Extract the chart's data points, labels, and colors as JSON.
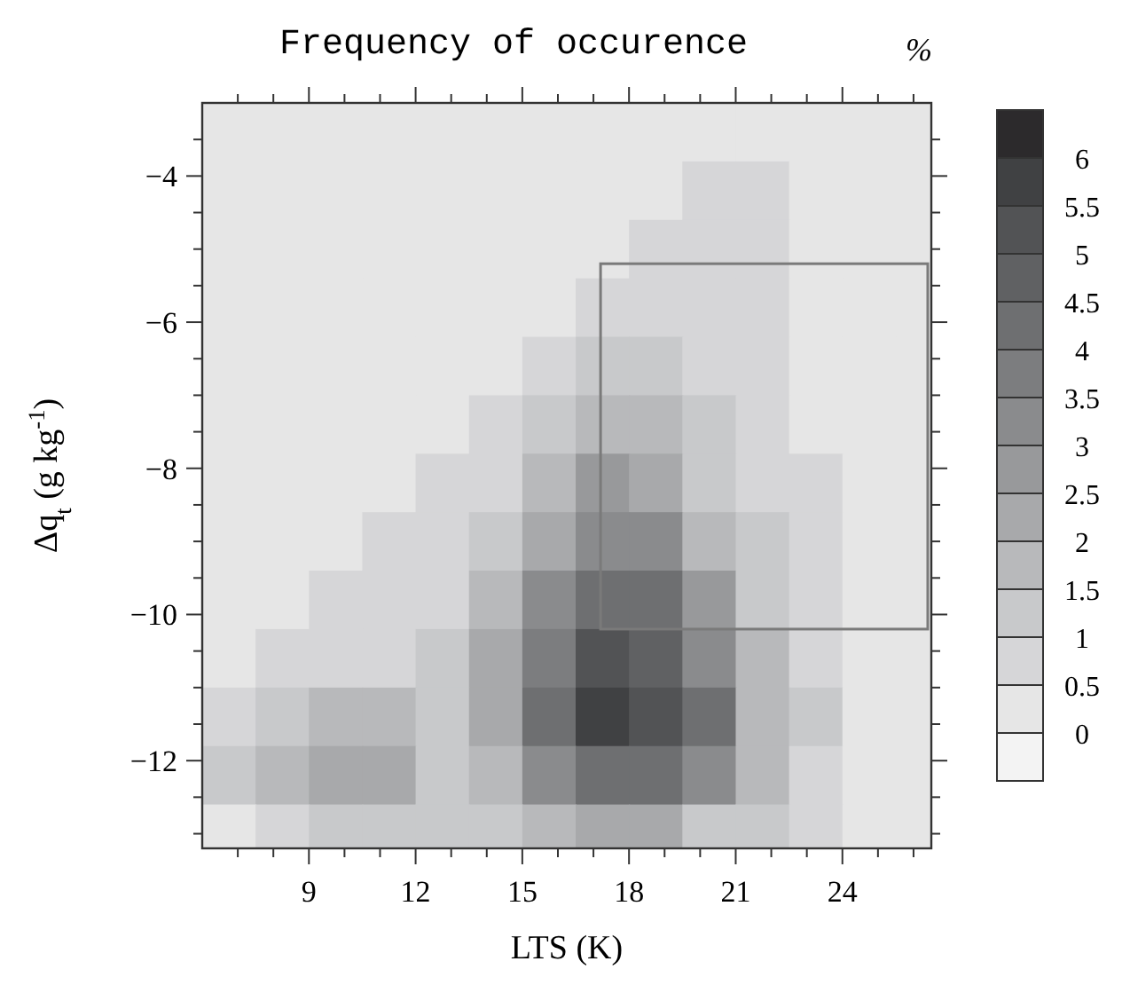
{
  "chart_data": {
    "type": "heatmap",
    "title": "Frequency of occurence",
    "clabel": "%",
    "xlabel": "LTS (K)",
    "ylabel": "Δq$_{t}$ (g kg$^{-1}$)",
    "x": [
      6.75,
      8.25,
      9.75,
      11.25,
      12.75,
      14.25,
      15.75,
      17.25,
      18.75,
      20.25,
      21.75,
      23.25,
      24.75,
      26.25
    ],
    "y": [
      -3.4,
      -4.2,
      -5.0,
      -5.8,
      -6.6,
      -7.4,
      -8.2,
      -9.0,
      -9.8,
      -10.6,
      -11.4,
      -12.2,
      -13.0
    ],
    "cells": [
      [
        0.2,
        0.2,
        0.2,
        0.2,
        0.2,
        0.2,
        0.2,
        0.2,
        0.2,
        0.2,
        0.2,
        0.2,
        0.2,
        0.2
      ],
      [
        0.2,
        0.2,
        0.2,
        0.2,
        0.2,
        0.2,
        0.2,
        0.2,
        0.2,
        0.6,
        0.7,
        0.2,
        0.2,
        0.2
      ],
      [
        0.2,
        0.2,
        0.2,
        0.2,
        0.2,
        0.2,
        0.2,
        0.2,
        0.6,
        0.8,
        0.8,
        0.4,
        0.2,
        0.2
      ],
      [
        0.2,
        0.2,
        0.2,
        0.2,
        0.2,
        0.2,
        0.2,
        0.6,
        0.9,
        0.9,
        0.6,
        0.2,
        0.2,
        0.2
      ],
      [
        0.2,
        0.2,
        0.2,
        0.2,
        0.2,
        0.2,
        0.6,
        1.2,
        1.2,
        0.8,
        0.5,
        0.2,
        0.2,
        0.2
      ],
      [
        0.2,
        0.2,
        0.2,
        0.2,
        0.2,
        0.6,
        1.2,
        1.7,
        1.6,
        1.1,
        0.7,
        0.3,
        0.2,
        0.2
      ],
      [
        0.2,
        0.2,
        0.2,
        0.2,
        0.5,
        0.9,
        1.7,
        2.6,
        2.4,
        1.3,
        0.8,
        0.5,
        0.2,
        0.2
      ],
      [
        0.2,
        0.2,
        0.2,
        0.6,
        0.8,
        1.3,
        2.3,
        3.2,
        3.0,
        1.8,
        1.1,
        0.6,
        0.3,
        0.2
      ],
      [
        0.2,
        0.4,
        0.6,
        0.8,
        0.9,
        1.6,
        3.2,
        4.2,
        4.0,
        2.5,
        1.3,
        0.8,
        0.3,
        0.2
      ],
      [
        0.4,
        0.8,
        0.9,
        0.9,
        1.2,
        2.0,
        3.8,
        5.2,
        4.8,
        3.2,
        1.6,
        0.9,
        0.3,
        0.2
      ],
      [
        0.8,
        1.3,
        1.6,
        1.5,
        1.2,
        2.2,
        4.2,
        5.6,
        5.0,
        4.0,
        1.8,
        1.0,
        0.3,
        0.2
      ],
      [
        1.1,
        1.6,
        2.2,
        2.3,
        1.4,
        1.6,
        3.2,
        4.3,
        4.1,
        3.4,
        1.8,
        0.9,
        0.3,
        0.2
      ],
      [
        0.4,
        0.8,
        1.1,
        1.1,
        1.1,
        1.2,
        1.7,
        2.2,
        2.0,
        1.4,
        1.1,
        0.6,
        0.3,
        0.2
      ]
    ],
    "xlim": [
      6,
      26.5
    ],
    "ylim": [
      -13.2,
      -3
    ],
    "xticks": [
      {
        "value": 7,
        "label": null
      },
      {
        "value": 8,
        "label": null
      },
      9,
      {
        "value": 10,
        "label": null
      },
      {
        "value": 11,
        "label": null
      },
      12,
      {
        "value": 13,
        "label": null
      },
      {
        "value": 14,
        "label": null
      },
      15,
      {
        "value": 16,
        "label": null
      },
      {
        "value": 17,
        "label": null
      },
      18,
      {
        "value": 19,
        "label": null
      },
      {
        "value": 20,
        "label": null
      },
      21,
      {
        "value": 22,
        "label": null
      },
      {
        "value": 23,
        "label": null
      },
      24,
      {
        "value": 25,
        "label": null
      },
      {
        "value": 26,
        "label": null
      }
    ],
    "yticks": [
      {
        "value": -13,
        "label": null
      },
      {
        "value": -12.5,
        "label": null
      },
      -12,
      {
        "value": -11.5,
        "label": null
      },
      {
        "value": -11,
        "label": null
      },
      {
        "value": -10.5,
        "label": null
      },
      -10,
      {
        "value": -9.5,
        "label": null
      },
      {
        "value": -9,
        "label": null
      },
      {
        "value": -8.5,
        "label": null
      },
      -8,
      {
        "value": -7.5,
        "label": null
      },
      {
        "value": -7,
        "label": null
      },
      {
        "value": -6.5,
        "label": null
      },
      -6,
      {
        "value": -5.5,
        "label": null
      },
      {
        "value": -5,
        "label": null
      },
      {
        "value": -4.5,
        "label": null
      },
      -4,
      {
        "value": -3.5,
        "label": null
      }
    ],
    "clim": [
      0,
      6
    ],
    "cticks": [
      0,
      0.5,
      1,
      1.5,
      2,
      2.5,
      3,
      3.5,
      4,
      4.5,
      5,
      5.5,
      6
    ],
    "colors": [
      "#f3f3f3",
      "#e6e6e6",
      "#d6d6d8",
      "#c8c9cb",
      "#b8b9bb",
      "#a8a9ab",
      "#98999b",
      "#8a8b8d",
      "#7c7d7f",
      "#6e6f71",
      "#606163",
      "#525355",
      "#404143",
      "#2c2a2c"
    ]
  }
}
